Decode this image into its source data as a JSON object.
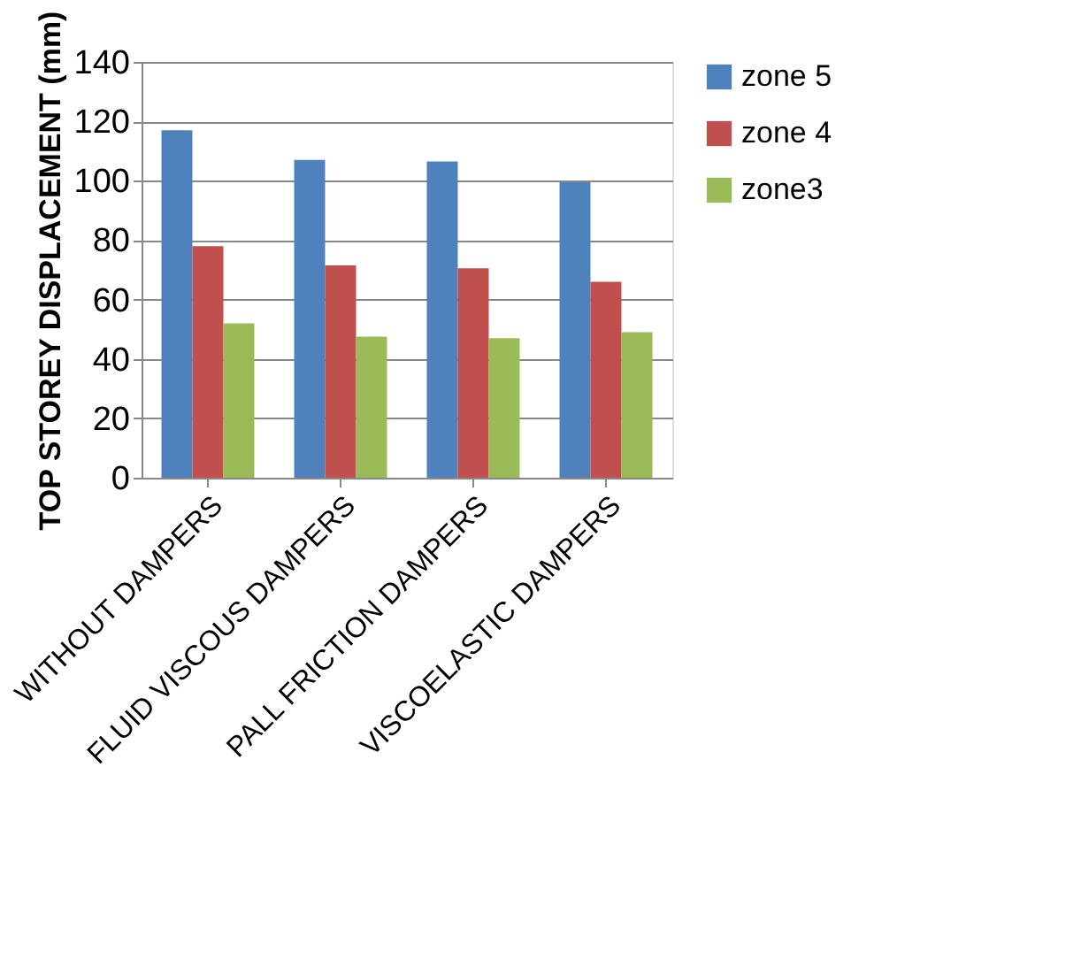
{
  "chart_data": {
    "type": "bar",
    "ylabel": "TOP STOREY DISPLACEMENT (mm)",
    "categories": [
      "WITHOUT DAMPERS",
      "FLUID VISCOUS DAMPERS",
      "PALL FRICTION DAMPERS",
      "VISCOELASTIC DAMPERS"
    ],
    "series": [
      {
        "name": "zone 5",
        "color": "#4f81bd",
        "values": [
          117,
          107,
          106.5,
          99.5
        ]
      },
      {
        "name": "zone 4",
        "color": "#c0504d",
        "values": [
          78,
          71.5,
          70.5,
          66
        ]
      },
      {
        "name": "zone3",
        "color": "#9bbb59",
        "values": [
          52,
          47.5,
          47,
          49
        ]
      }
    ],
    "ylim": [
      0,
      140
    ],
    "yticks": [
      0,
      20,
      40,
      60,
      80,
      100,
      120,
      140
    ],
    "grid": "y",
    "legend": "right"
  }
}
